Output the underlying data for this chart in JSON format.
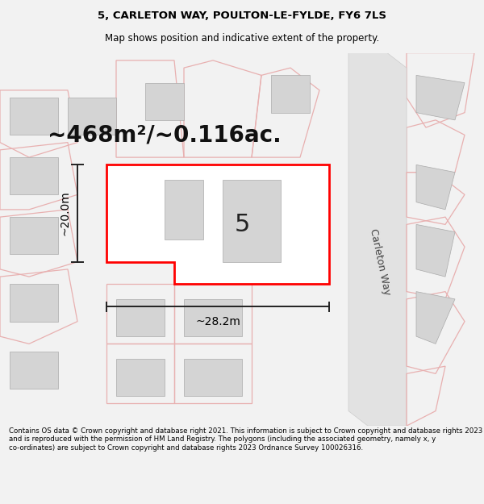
{
  "title": "5, CARLETON WAY, POULTON-LE-FYLDE, FY6 7LS",
  "subtitle": "Map shows position and indicative extent of the property.",
  "area_label": "~468m²/~0.116ac.",
  "number_label": "5",
  "width_label": "~28.2m",
  "height_label": "~20.0m",
  "road_label": "Carleton Way",
  "footer": "Contains OS data © Crown copyright and database right 2021. This information is subject to Crown copyright and database rights 2023 and is reproduced with the permission of HM Land Registry. The polygons (including the associated geometry, namely x, y co-ordinates) are subject to Crown copyright and database rights 2023 Ordnance Survey 100026316.",
  "bg_color": "#f2f2f2",
  "map_bg": "#efefef",
  "building_fill": "#d4d4d4",
  "building_edge": "#aaaaaa",
  "plot_outline_color": "#e8b0b0",
  "road_fill": "#e2e2e2",
  "road_edge": "#cccccc",
  "subject_fill": "#ffffff",
  "subject_edge": "#ff0000",
  "dim_color": "#222222",
  "title_fontsize": 9.5,
  "subtitle_fontsize": 8.5,
  "area_fontsize": 20,
  "number_fontsize": 22,
  "dim_fontsize": 10,
  "road_fontsize": 9,
  "footer_fontsize": 6.2
}
